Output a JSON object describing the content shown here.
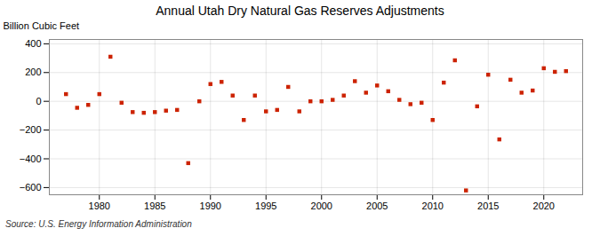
{
  "chart_data": {
    "type": "scatter",
    "title": "Annual Utah Dry Natural Gas Reserves Adjustments",
    "ylabel": "Billion Cubic Feet",
    "source": "Source: U.S. Energy Information Administration",
    "x": [
      1977,
      1978,
      1979,
      1980,
      1981,
      1982,
      1983,
      1984,
      1985,
      1986,
      1987,
      1988,
      1989,
      1990,
      1991,
      1992,
      1993,
      1994,
      1995,
      1996,
      1997,
      1998,
      1999,
      2000,
      2001,
      2002,
      2003,
      2004,
      2005,
      2006,
      2007,
      2008,
      2009,
      2010,
      2011,
      2012,
      2013,
      2014,
      2015,
      2016,
      2017,
      2018,
      2019,
      2020,
      2021,
      2022
    ],
    "values": [
      50,
      -45,
      -25,
      50,
      310,
      -10,
      -75,
      -80,
      -75,
      -65,
      -60,
      -430,
      0,
      120,
      135,
      40,
      -130,
      40,
      -70,
      -60,
      100,
      -70,
      0,
      0,
      10,
      40,
      140,
      60,
      110,
      70,
      10,
      -20,
      -10,
      -130,
      130,
      285,
      -620,
      -35,
      185,
      -265,
      150,
      60,
      75,
      230,
      205,
      210
    ],
    "color": "#cc2200",
    "marker": "square",
    "xlim": [
      1975.5,
      2023.5
    ],
    "ylim": [
      -650,
      430
    ],
    "xticks": [
      1980,
      1985,
      1990,
      1995,
      2000,
      2005,
      2010,
      2015,
      2020
    ],
    "yticks": [
      -600,
      -400,
      -200,
      0,
      200,
      400
    ],
    "grid": true
  }
}
